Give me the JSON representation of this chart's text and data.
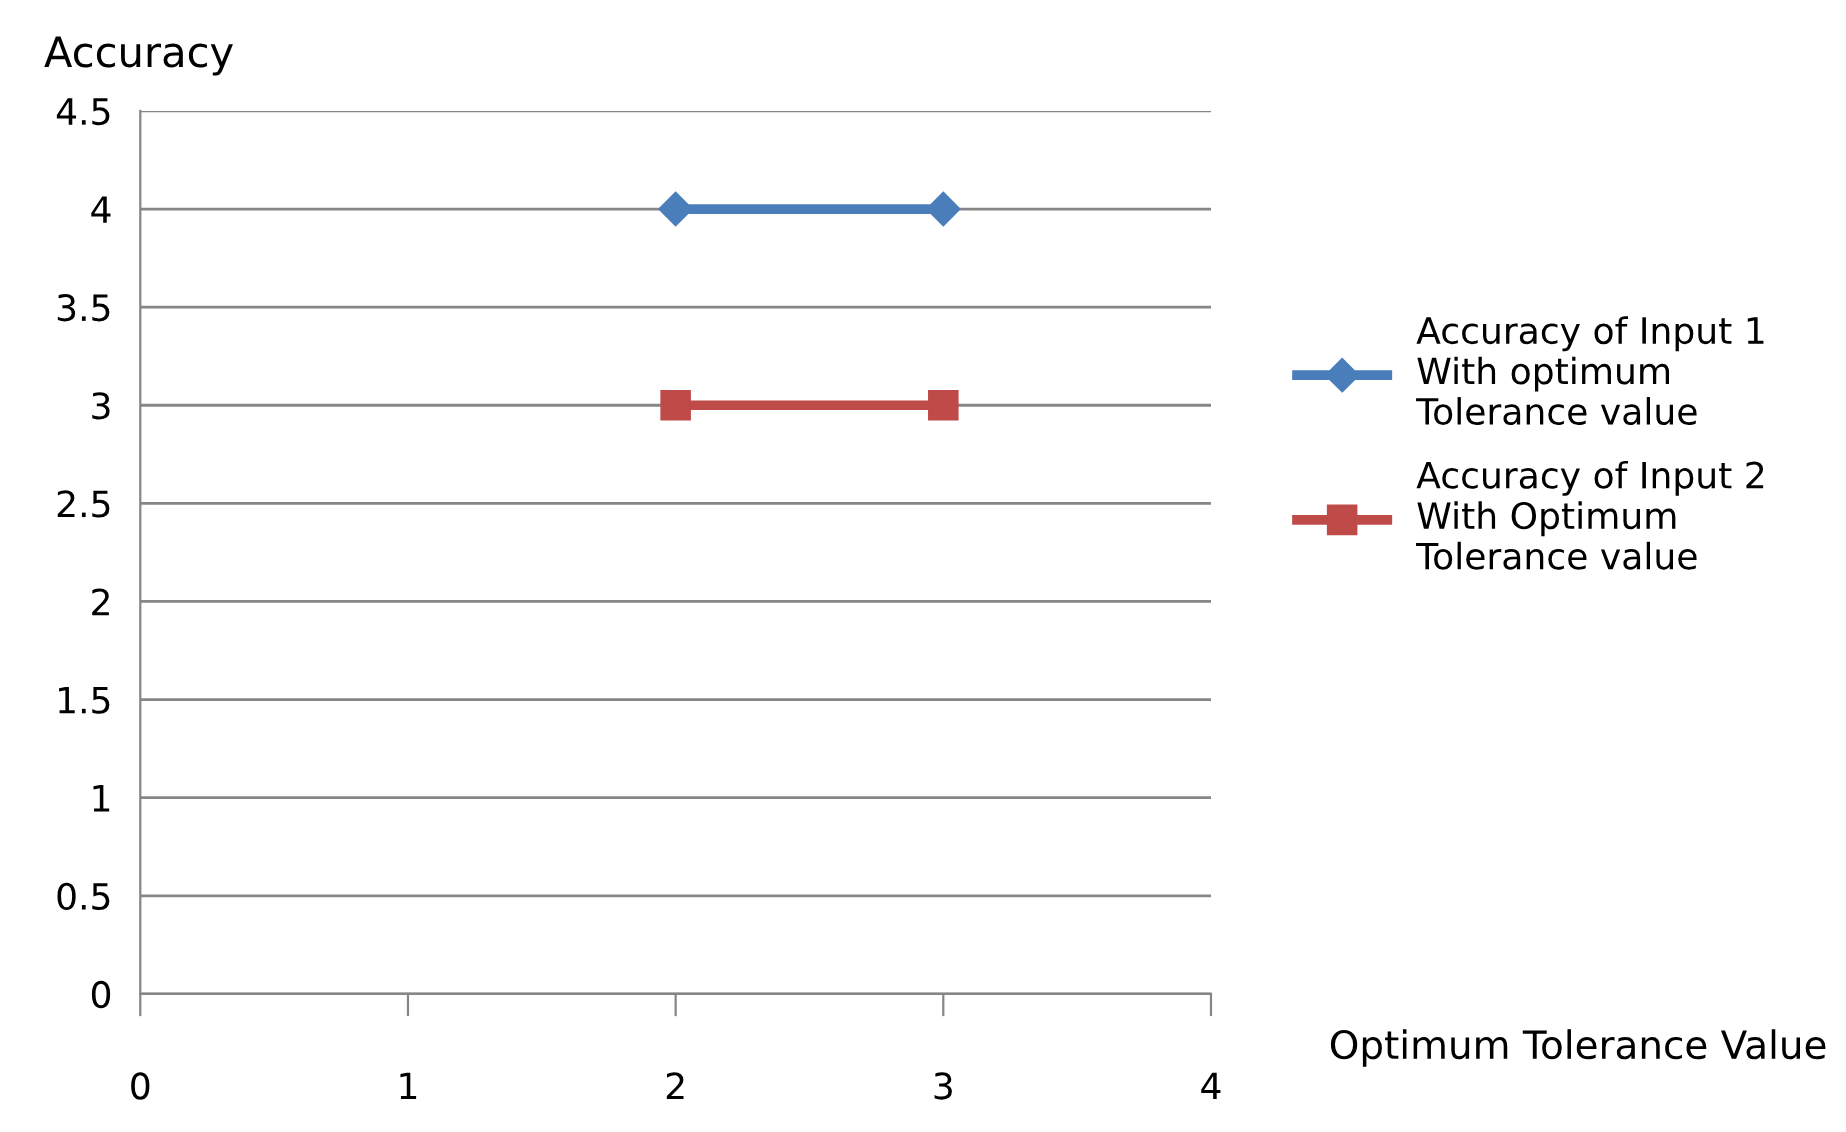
{
  "chart_data": {
    "type": "line",
    "xlabel": "Optimum Tolerance Value",
    "ylabel": "Accuracy",
    "x": [
      2,
      3
    ],
    "series": [
      {
        "name": "Accuracy of Input 1\nWith optimum\nTolerance value",
        "color": "#4a7ebb",
        "values": [
          4,
          4
        ],
        "marker": "diamond"
      },
      {
        "name": "Accuracy of Input 2\nWith Optimum\nTolerance value",
        "color": "#be4b48",
        "values": [
          3,
          3
        ],
        "marker": "square"
      }
    ],
    "xlim": [
      0,
      4
    ],
    "xticks": [
      0,
      1,
      2,
      3,
      4
    ],
    "ylim": [
      0,
      4.5
    ],
    "yticks": [
      0,
      0.5,
      1,
      1.5,
      2,
      2.5,
      3,
      3.5,
      4,
      4.5
    ],
    "grid": "y",
    "legend": "right",
    "line_style": "solid"
  }
}
